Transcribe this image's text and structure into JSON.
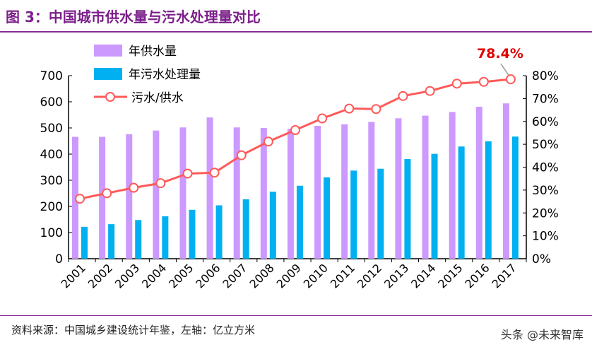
{
  "title": "图 3：中国城市供水量与污水处理量对比",
  "source": "资料来源：中国城乡建设统计年鉴，左轴：亿立方米",
  "watermark": "头条 @未来智库",
  "chart_data": {
    "type": "bar+line",
    "categories": [
      "2001",
      "2002",
      "2003",
      "2004",
      "2005",
      "2006",
      "2007",
      "2008",
      "2009",
      "2010",
      "2011",
      "2012",
      "2013",
      "2014",
      "2015",
      "2016",
      "2017"
    ],
    "series": [
      {
        "name": "年供水量",
        "type": "bar",
        "axis": "left",
        "color": "#cc99ff",
        "values": [
          466,
          466,
          476,
          490,
          502,
          540,
          502,
          500,
          497,
          508,
          514,
          523,
          537,
          547,
          561,
          581,
          594
        ]
      },
      {
        "name": "年污水处理量",
        "type": "bar",
        "axis": "left",
        "color": "#00b0f0",
        "values": [
          122,
          132,
          148,
          162,
          187,
          204,
          227,
          256,
          279,
          311,
          337,
          344,
          381,
          401,
          429,
          449,
          467
        ]
      },
      {
        "name": "污水/供水",
        "type": "line",
        "axis": "right",
        "color": "#ff5a5a",
        "values": [
          26.2,
          28.6,
          31.0,
          33.0,
          37.2,
          37.6,
          45.2,
          51.2,
          56.2,
          61.3,
          65.6,
          65.4,
          71.1,
          73.3,
          76.5,
          77.3,
          78.4
        ]
      }
    ],
    "ylim_left": [
      0,
      700
    ],
    "yticks_left": [
      "0",
      "100",
      "200",
      "300",
      "400",
      "500",
      "600",
      "700"
    ],
    "ylim_right": [
      0,
      80
    ],
    "yticks_right": [
      "0%",
      "10%",
      "20%",
      "30%",
      "40%",
      "50%",
      "60%",
      "70%",
      "80%"
    ],
    "annotation": "78.4%",
    "legend_placement": "top-left",
    "grid": false
  }
}
